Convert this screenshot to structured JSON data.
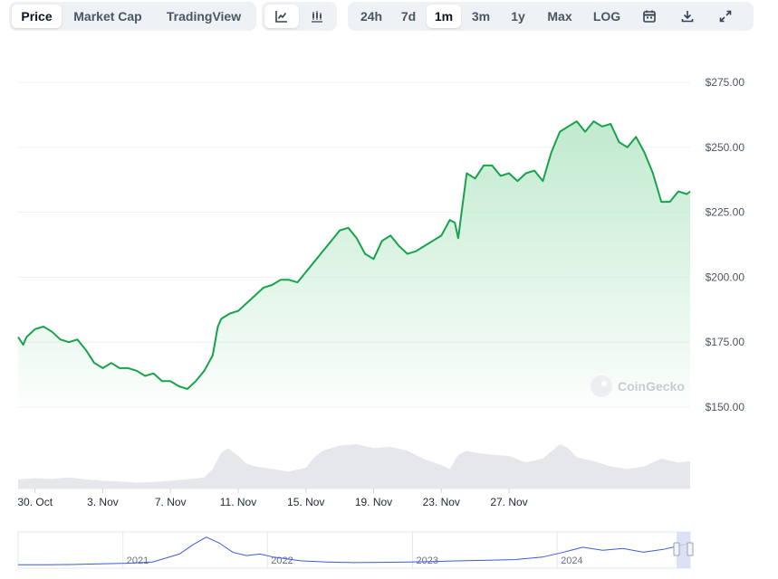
{
  "tabs": [
    {
      "label": "Price",
      "active": true
    },
    {
      "label": "Market Cap",
      "active": false
    },
    {
      "label": "TradingView",
      "active": false
    }
  ],
  "chart_type_buttons": [
    {
      "icon": "line-chart-icon",
      "active": true
    },
    {
      "icon": "candlestick-chart-icon",
      "active": false
    }
  ],
  "ranges": [
    {
      "label": "24h",
      "active": false
    },
    {
      "label": "7d",
      "active": false
    },
    {
      "label": "1m",
      "active": true
    },
    {
      "label": "3m",
      "active": false
    },
    {
      "label": "1y",
      "active": false
    },
    {
      "label": "Max",
      "active": false
    },
    {
      "label": "LOG",
      "active": false
    }
  ],
  "tool_icons": [
    "calendar-icon",
    "download-icon",
    "expand-icon"
  ],
  "watermark": "CoinGecko",
  "colors": {
    "line": "#16a34a",
    "area_top": "#bde9cc",
    "volume": "#e5e7eb",
    "navigator_line": "#3b5bdb",
    "grid": "#eef0f3"
  },
  "chart_data": {
    "type": "line",
    "y_ticks": [
      "$275.00",
      "$250.00",
      "$225.00",
      "$200.00",
      "$175.00",
      "$150.00"
    ],
    "y_tick_values": [
      275,
      250,
      225,
      200,
      175,
      150
    ],
    "x_ticks": [
      "30. Oct",
      "3. Nov",
      "7. Nov",
      "11. Nov",
      "15. Nov",
      "19. Nov",
      "23. Nov",
      "27. Nov"
    ],
    "ylim": [
      150,
      275
    ],
    "grid": true,
    "price": [
      [
        0,
        177
      ],
      [
        0.3,
        174
      ],
      [
        0.5,
        177
      ],
      [
        1,
        180
      ],
      [
        1.5,
        181
      ],
      [
        2,
        179
      ],
      [
        2.5,
        176
      ],
      [
        3,
        175
      ],
      [
        3.5,
        176
      ],
      [
        4,
        172
      ],
      [
        4.5,
        167
      ],
      [
        5,
        165
      ],
      [
        5.5,
        167
      ],
      [
        6,
        165
      ],
      [
        6.5,
        165
      ],
      [
        7,
        164
      ],
      [
        7.5,
        162
      ],
      [
        8,
        163
      ],
      [
        8.5,
        160
      ],
      [
        9,
        160
      ],
      [
        9.5,
        158
      ],
      [
        10,
        157
      ],
      [
        10.5,
        160
      ],
      [
        11,
        164
      ],
      [
        11.5,
        170
      ],
      [
        11.8,
        181
      ],
      [
        12,
        184
      ],
      [
        12.5,
        186
      ],
      [
        13,
        187
      ],
      [
        13.5,
        190
      ],
      [
        14,
        193
      ],
      [
        14.5,
        196
      ],
      [
        15,
        197
      ],
      [
        15.5,
        199
      ],
      [
        16,
        199
      ],
      [
        16.5,
        198
      ],
      [
        17,
        202
      ],
      [
        17.5,
        206
      ],
      [
        18,
        210
      ],
      [
        18.5,
        214
      ],
      [
        19,
        218
      ],
      [
        19.5,
        219
      ],
      [
        20,
        215
      ],
      [
        20.5,
        209
      ],
      [
        21,
        207
      ],
      [
        21.5,
        214
      ],
      [
        22,
        216
      ],
      [
        22.5,
        212
      ],
      [
        23,
        209
      ],
      [
        23.5,
        210
      ],
      [
        24,
        212
      ],
      [
        24.5,
        214
      ],
      [
        25,
        216
      ],
      [
        25.5,
        222
      ],
      [
        25.8,
        221
      ],
      [
        26,
        215
      ],
      [
        26.5,
        240
      ],
      [
        27,
        238
      ],
      [
        27.5,
        243
      ],
      [
        28,
        243
      ],
      [
        28.5,
        239
      ],
      [
        29,
        240
      ],
      [
        29.5,
        237
      ],
      [
        30,
        240
      ],
      [
        30.5,
        241
      ],
      [
        31,
        237
      ],
      [
        31.5,
        248
      ],
      [
        32,
        256
      ],
      [
        32.5,
        258
      ],
      [
        33,
        260
      ],
      [
        33.5,
        256
      ],
      [
        34,
        260
      ],
      [
        34.5,
        258
      ],
      [
        35,
        259
      ],
      [
        35.5,
        252
      ],
      [
        36,
        250
      ],
      [
        36.5,
        254
      ],
      [
        37,
        248
      ],
      [
        37.5,
        240
      ],
      [
        38,
        229
      ],
      [
        38.5,
        229
      ],
      [
        39,
        233
      ],
      [
        39.5,
        232
      ],
      [
        39.7,
        233
      ]
    ],
    "volume": [
      [
        0,
        0.14
      ],
      [
        1,
        0.16
      ],
      [
        2,
        0.15
      ],
      [
        3,
        0.17
      ],
      [
        4,
        0.14
      ],
      [
        5,
        0.12
      ],
      [
        6,
        0.11
      ],
      [
        7,
        0.09
      ],
      [
        8,
        0.1
      ],
      [
        9,
        0.12
      ],
      [
        10,
        0.14
      ],
      [
        11,
        0.17
      ],
      [
        11.5,
        0.3
      ],
      [
        12,
        0.55
      ],
      [
        12.4,
        0.62
      ],
      [
        13,
        0.5
      ],
      [
        13.5,
        0.38
      ],
      [
        14,
        0.34
      ],
      [
        15,
        0.3
      ],
      [
        16,
        0.26
      ],
      [
        17,
        0.32
      ],
      [
        17.5,
        0.48
      ],
      [
        18,
        0.58
      ],
      [
        19,
        0.66
      ],
      [
        20,
        0.68
      ],
      [
        21,
        0.62
      ],
      [
        22,
        0.64
      ],
      [
        23,
        0.58
      ],
      [
        24,
        0.45
      ],
      [
        25,
        0.36
      ],
      [
        25.5,
        0.3
      ],
      [
        26,
        0.52
      ],
      [
        26.5,
        0.58
      ],
      [
        27,
        0.55
      ],
      [
        28,
        0.52
      ],
      [
        29,
        0.5
      ],
      [
        30,
        0.4
      ],
      [
        31,
        0.46
      ],
      [
        32,
        0.68
      ],
      [
        32.5,
        0.62
      ],
      [
        33,
        0.48
      ],
      [
        34,
        0.42
      ],
      [
        35,
        0.34
      ],
      [
        36,
        0.3
      ],
      [
        37,
        0.34
      ],
      [
        38,
        0.46
      ],
      [
        39,
        0.4
      ],
      [
        39.7,
        0.42
      ]
    ],
    "navigator": {
      "year_labels": [
        "2021",
        "2022",
        "2023",
        "2024"
      ],
      "values": [
        [
          0,
          0.05
        ],
        [
          0.04,
          0.05
        ],
        [
          0.08,
          0.06
        ],
        [
          0.12,
          0.08
        ],
        [
          0.16,
          0.1
        ],
        [
          0.2,
          0.14
        ],
        [
          0.24,
          0.4
        ],
        [
          0.26,
          0.7
        ],
        [
          0.28,
          0.95
        ],
        [
          0.3,
          0.75
        ],
        [
          0.32,
          0.45
        ],
        [
          0.34,
          0.35
        ],
        [
          0.36,
          0.4
        ],
        [
          0.38,
          0.3
        ],
        [
          0.4,
          0.24
        ],
        [
          0.42,
          0.18
        ],
        [
          0.46,
          0.14
        ],
        [
          0.5,
          0.12
        ],
        [
          0.54,
          0.13
        ],
        [
          0.58,
          0.14
        ],
        [
          0.62,
          0.16
        ],
        [
          0.66,
          0.18
        ],
        [
          0.7,
          0.2
        ],
        [
          0.74,
          0.22
        ],
        [
          0.78,
          0.3
        ],
        [
          0.81,
          0.45
        ],
        [
          0.84,
          0.62
        ],
        [
          0.87,
          0.52
        ],
        [
          0.9,
          0.58
        ],
        [
          0.93,
          0.46
        ],
        [
          0.96,
          0.55
        ],
        [
          0.98,
          0.65
        ],
        [
          1,
          0.75
        ]
      ]
    }
  }
}
